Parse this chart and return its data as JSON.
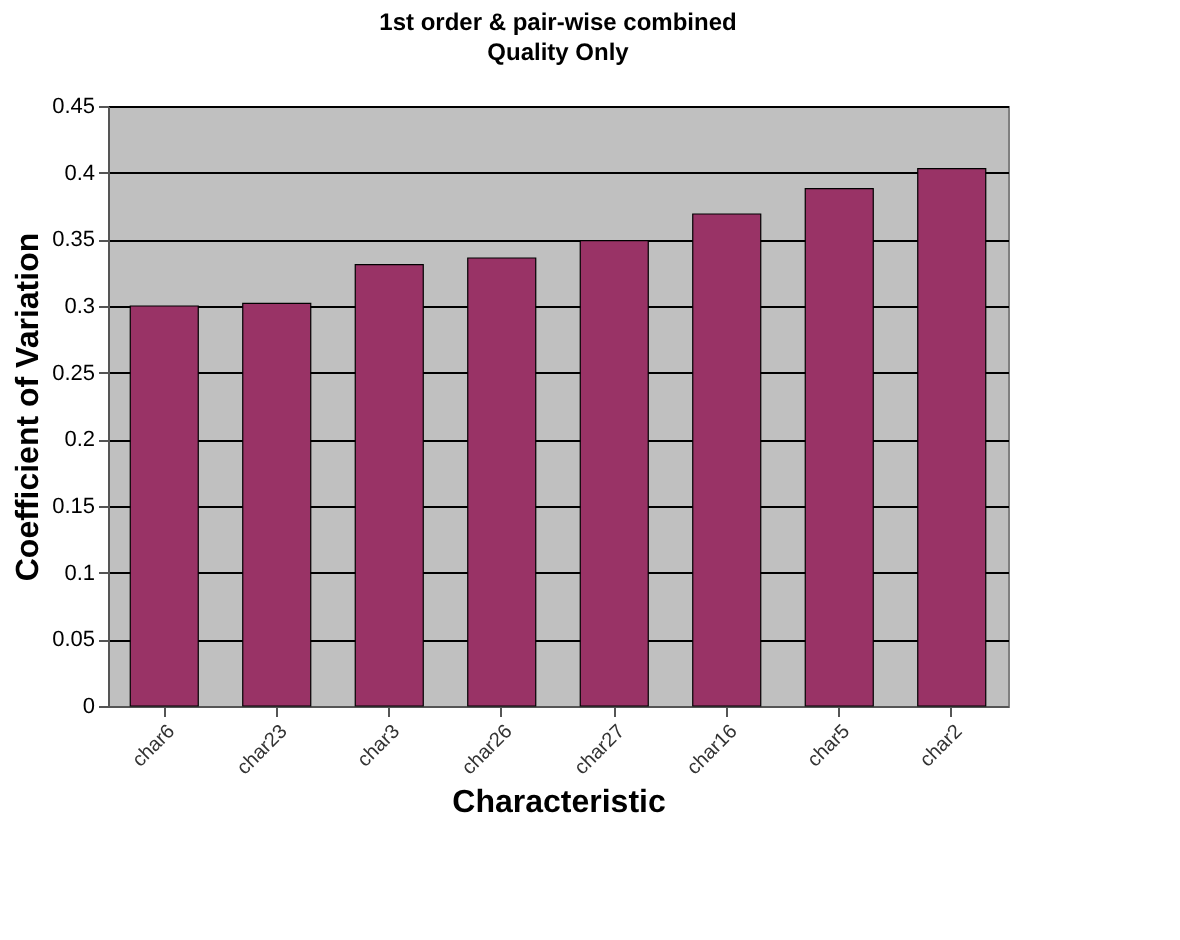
{
  "chart_data": {
    "type": "bar",
    "title": "1st order & pair-wise combined",
    "subtitle": "Quality Only",
    "xlabel": "Characteristic",
    "ylabel": "Coefficient of Variation",
    "categories": [
      "char6",
      "char23",
      "char3",
      "char26",
      "char27",
      "char16",
      "char5",
      "char2"
    ],
    "values": [
      0.3,
      0.302,
      0.331,
      0.336,
      0.349,
      0.369,
      0.388,
      0.403
    ],
    "color": "#993366",
    "ylim": [
      0,
      0.45
    ],
    "yticks": [
      0,
      0.05,
      0.1,
      0.15,
      0.2,
      0.25,
      0.3,
      0.35,
      0.4,
      0.45
    ],
    "grid": "y"
  }
}
